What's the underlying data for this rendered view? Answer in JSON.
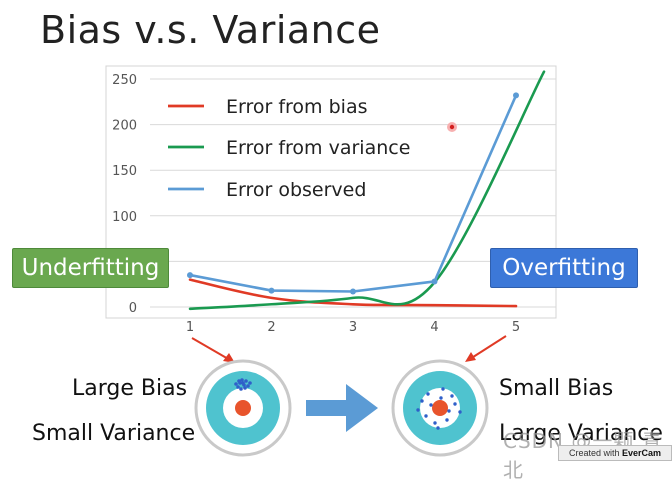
{
  "slide": {
    "title": "Bias v.s. Variance"
  },
  "chart_data": {
    "type": "line",
    "x": [
      1,
      2,
      3,
      4,
      5
    ],
    "xticks": [
      "1",
      "2",
      "3",
      "4",
      "5"
    ],
    "ylim": [
      0,
      250
    ],
    "yticks": [
      0,
      50,
      100,
      150,
      200,
      250
    ],
    "grid": true,
    "legend_position": "top-left",
    "series": [
      {
        "name": "Error from bias",
        "color": "#e03a25",
        "style": "smooth",
        "values": [
          30,
          10,
          3,
          2,
          1
        ]
      },
      {
        "name": "Error from variance",
        "color": "#1a9a50",
        "style": "smooth",
        "values": [
          -2,
          3,
          10,
          27,
          258
        ]
      },
      {
        "name": "Error observed",
        "color": "#5b9bd5",
        "style": "straight",
        "values": [
          35,
          18,
          17,
          28,
          232
        ]
      }
    ]
  },
  "annotations": {
    "underfitting": "Underfitting",
    "overfitting": "Overfitting",
    "large_bias": "Large Bias",
    "small_variance": "Small Variance",
    "small_bias": "Small Bias",
    "large_variance": "Large Variance",
    "arrow_color": "#5b9bd5",
    "pointer_color": "#e03a25"
  },
  "overlay": {
    "watermark": "CSDN @一颗 青北",
    "recorder_prefix": "Created with",
    "recorder_name": "EverCam"
  }
}
